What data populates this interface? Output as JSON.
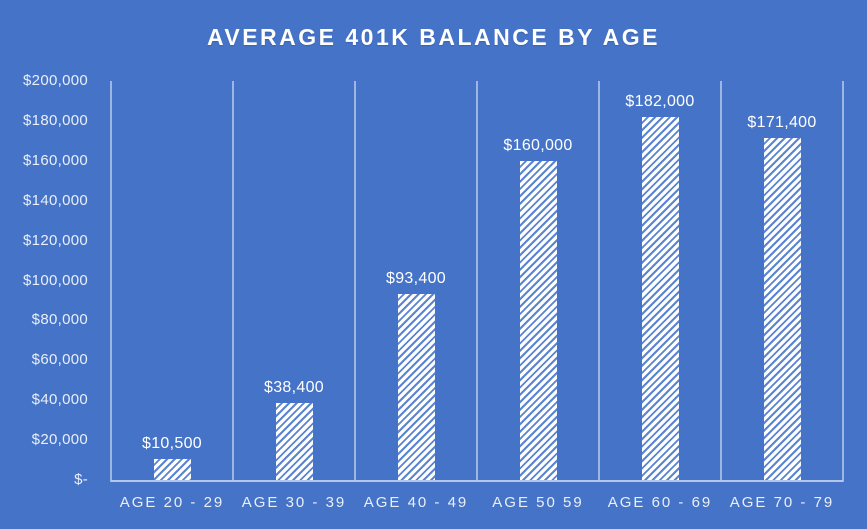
{
  "title": "AVERAGE 401K BALANCE BY AGE",
  "colors": {
    "background": "#4573C7",
    "gridline": "#9FB6E2",
    "axis_line": "#B4C7EA",
    "title_text": "#FFFFFF",
    "tick_text": "#E9EFF9",
    "bar_base": "#FFFFFF",
    "bar_stripe": "#5B84D1"
  },
  "chart_data": {
    "type": "bar",
    "title": "AVERAGE 401K BALANCE BY AGE",
    "categories": [
      "AGE 20 - 29",
      "AGE 30 - 39",
      "AGE 40 - 49",
      "AGE 50 59",
      "AGE 60 - 69",
      "AGE 70 - 79"
    ],
    "values": [
      10500,
      38400,
      93400,
      160000,
      182000,
      171400
    ],
    "data_labels": [
      "$10,500",
      "$38,400",
      "$93,400",
      "$160,000",
      "$182,000",
      "$171,400"
    ],
    "y_ticks": [
      {
        "label": "$200,000",
        "value": 200000
      },
      {
        "label": "$180,000",
        "value": 180000
      },
      {
        "label": "$160,000",
        "value": 160000
      },
      {
        "label": "$140,000",
        "value": 140000
      },
      {
        "label": "$120,000",
        "value": 120000
      },
      {
        "label": "$100,000",
        "value": 100000
      },
      {
        "label": "$80,000",
        "value": 80000
      },
      {
        "label": "$60,000",
        "value": 60000
      },
      {
        "label": "$40,000",
        "value": 40000
      },
      {
        "label": "$20,000",
        "value": 20000
      },
      {
        "label": "$-",
        "value": 0
      }
    ],
    "xlabel": "",
    "ylabel": "",
    "ylim": [
      0,
      200000
    ],
    "grid": "vertical-only",
    "legend": "none",
    "bar_fill": "white-diagonal-hatch"
  }
}
